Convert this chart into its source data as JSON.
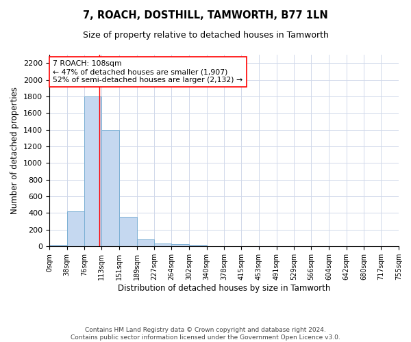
{
  "title": "7, ROACH, DOSTHILL, TAMWORTH, B77 1LN",
  "subtitle": "Size of property relative to detached houses in Tamworth",
  "xlabel": "Distribution of detached houses by size in Tamworth",
  "ylabel": "Number of detached properties",
  "bar_color": "#c5d8f0",
  "bar_edge_color": "#7bafd4",
  "bins": [
    0,
    38,
    76,
    113,
    151,
    189,
    227,
    264,
    302,
    340,
    378,
    415,
    453,
    491,
    529,
    566,
    604,
    642,
    680,
    717,
    755
  ],
  "bin_labels": [
    "0sqm",
    "38sqm",
    "76sqm",
    "113sqm",
    "151sqm",
    "189sqm",
    "227sqm",
    "264sqm",
    "302sqm",
    "340sqm",
    "378sqm",
    "415sqm",
    "453sqm",
    "491sqm",
    "529sqm",
    "566sqm",
    "604sqm",
    "642sqm",
    "680sqm",
    "717sqm",
    "755sqm"
  ],
  "bar_heights": [
    20,
    420,
    1800,
    1400,
    350,
    80,
    30,
    25,
    20,
    0,
    0,
    0,
    0,
    0,
    0,
    0,
    0,
    0,
    0,
    0
  ],
  "ylim": [
    0,
    2300
  ],
  "yticks": [
    0,
    200,
    400,
    600,
    800,
    1000,
    1200,
    1400,
    1600,
    1800,
    2000,
    2200
  ],
  "red_line_x": 108,
  "annotation_line1": "7 ROACH: 108sqm",
  "annotation_line2": "← 47% of detached houses are smaller (1,907)",
  "annotation_line3": "52% of semi-detached houses are larger (2,132) →",
  "footer_line1": "Contains HM Land Registry data © Crown copyright and database right 2024.",
  "footer_line2": "Contains public sector information licensed under the Government Open Licence v3.0.",
  "background_color": "#ffffff",
  "grid_color": "#d0d8ea"
}
